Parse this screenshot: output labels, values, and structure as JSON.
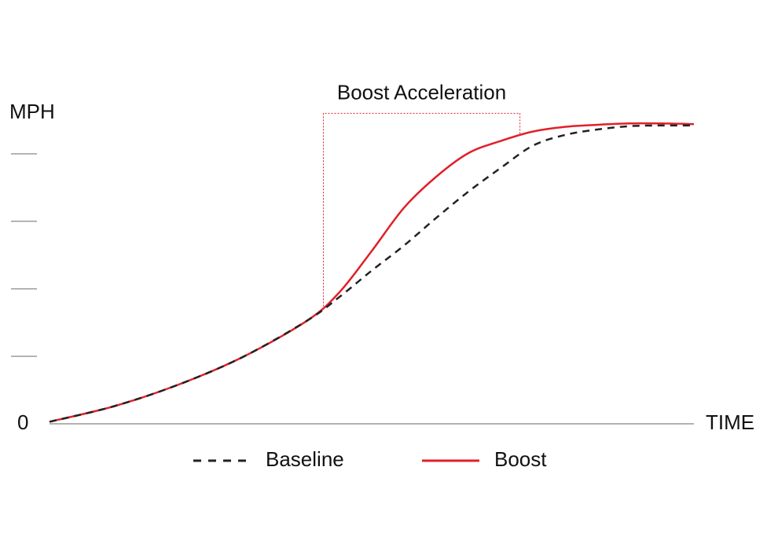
{
  "chart_data": {
    "type": "line",
    "y_label": "MPH",
    "x_label": "TIME",
    "x": [
      0,
      1,
      2,
      3,
      4,
      4.5,
      5,
      5.5,
      6,
      6.5,
      7,
      7.5,
      8,
      8.5,
      9,
      9.5,
      10
    ],
    "series": [
      {
        "name": "Baseline",
        "color": "#222222",
        "dash": true,
        "values": [
          0.03,
          0.26,
          0.58,
          0.99,
          1.53,
          1.88,
          2.27,
          2.64,
          3.05,
          3.44,
          3.79,
          4.12,
          4.28,
          4.36,
          4.41,
          4.42,
          4.42
        ]
      },
      {
        "name": "Boost",
        "color": "#e0202a",
        "dash": false,
        "values": [
          0.03,
          0.26,
          0.58,
          0.99,
          1.53,
          1.95,
          2.56,
          3.2,
          3.66,
          4.01,
          4.19,
          4.33,
          4.4,
          4.43,
          4.45,
          4.45,
          4.44
        ]
      }
    ],
    "annotation": {
      "text": "Boost Acceleration",
      "x": [
        4.25,
        7.3
      ],
      "y": 4.6,
      "color": "#e0202a"
    },
    "xlim": [
      0,
      10
    ],
    "ylim": [
      0,
      5
    ],
    "yticks": [
      1,
      2,
      3,
      4
    ]
  }
}
